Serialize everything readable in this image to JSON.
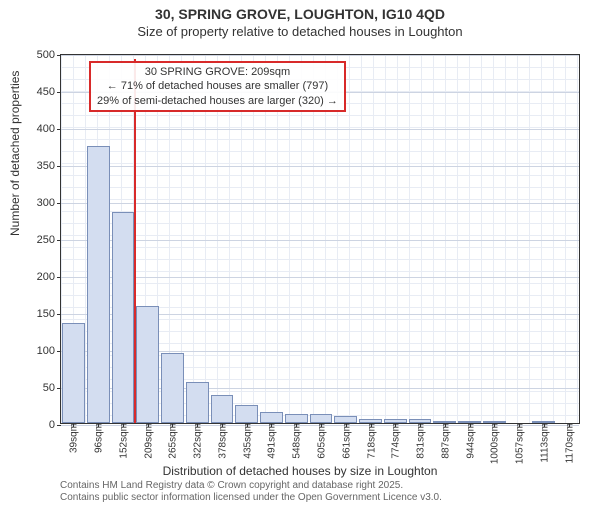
{
  "titles": {
    "main": "30, SPRING GROVE, LOUGHTON, IG10 4QD",
    "sub": "Size of property relative to detached houses in Loughton"
  },
  "chart": {
    "type": "histogram",
    "ylabel": "Number of detached properties",
    "xlabel": "Distribution of detached houses by size in Loughton",
    "ylim": [
      0,
      500
    ],
    "ytick_step": 50,
    "bar_fill": "#d3ddf0",
    "bar_border": "#7a8fb8",
    "grid_minor_color": "#e8ecf4",
    "grid_major_color": "#cdd4e2",
    "background": "#ffffff",
    "x_categories": [
      "39sqm",
      "96sqm",
      "152sqm",
      "209sqm",
      "265sqm",
      "322sqm",
      "378sqm",
      "435sqm",
      "491sqm",
      "548sqm",
      "605sqm",
      "661sqm",
      "718sqm",
      "774sqm",
      "831sqm",
      "887sqm",
      "944sqm",
      "1000sqm",
      "1057sqm",
      "1113sqm",
      "1170sqm"
    ],
    "bar_values": [
      135,
      375,
      285,
      158,
      95,
      55,
      38,
      25,
      15,
      12,
      12,
      10,
      5,
      5,
      5,
      2,
      2,
      2,
      0,
      2,
      0
    ],
    "marker": {
      "index_after_bar": 3,
      "color": "#d82a2a"
    },
    "annotation": {
      "line1": "30 SPRING GROVE: 209sqm",
      "line2": "← 71% of detached houses are smaller (797)",
      "line3": "29% of semi-detached houses are larger (320) →",
      "border_color": "#d82a2a"
    }
  },
  "footer": {
    "line1": "Contains HM Land Registry data © Crown copyright and database right 2025.",
    "line2": "Contains public sector information licensed under the Open Government Licence v3.0."
  }
}
